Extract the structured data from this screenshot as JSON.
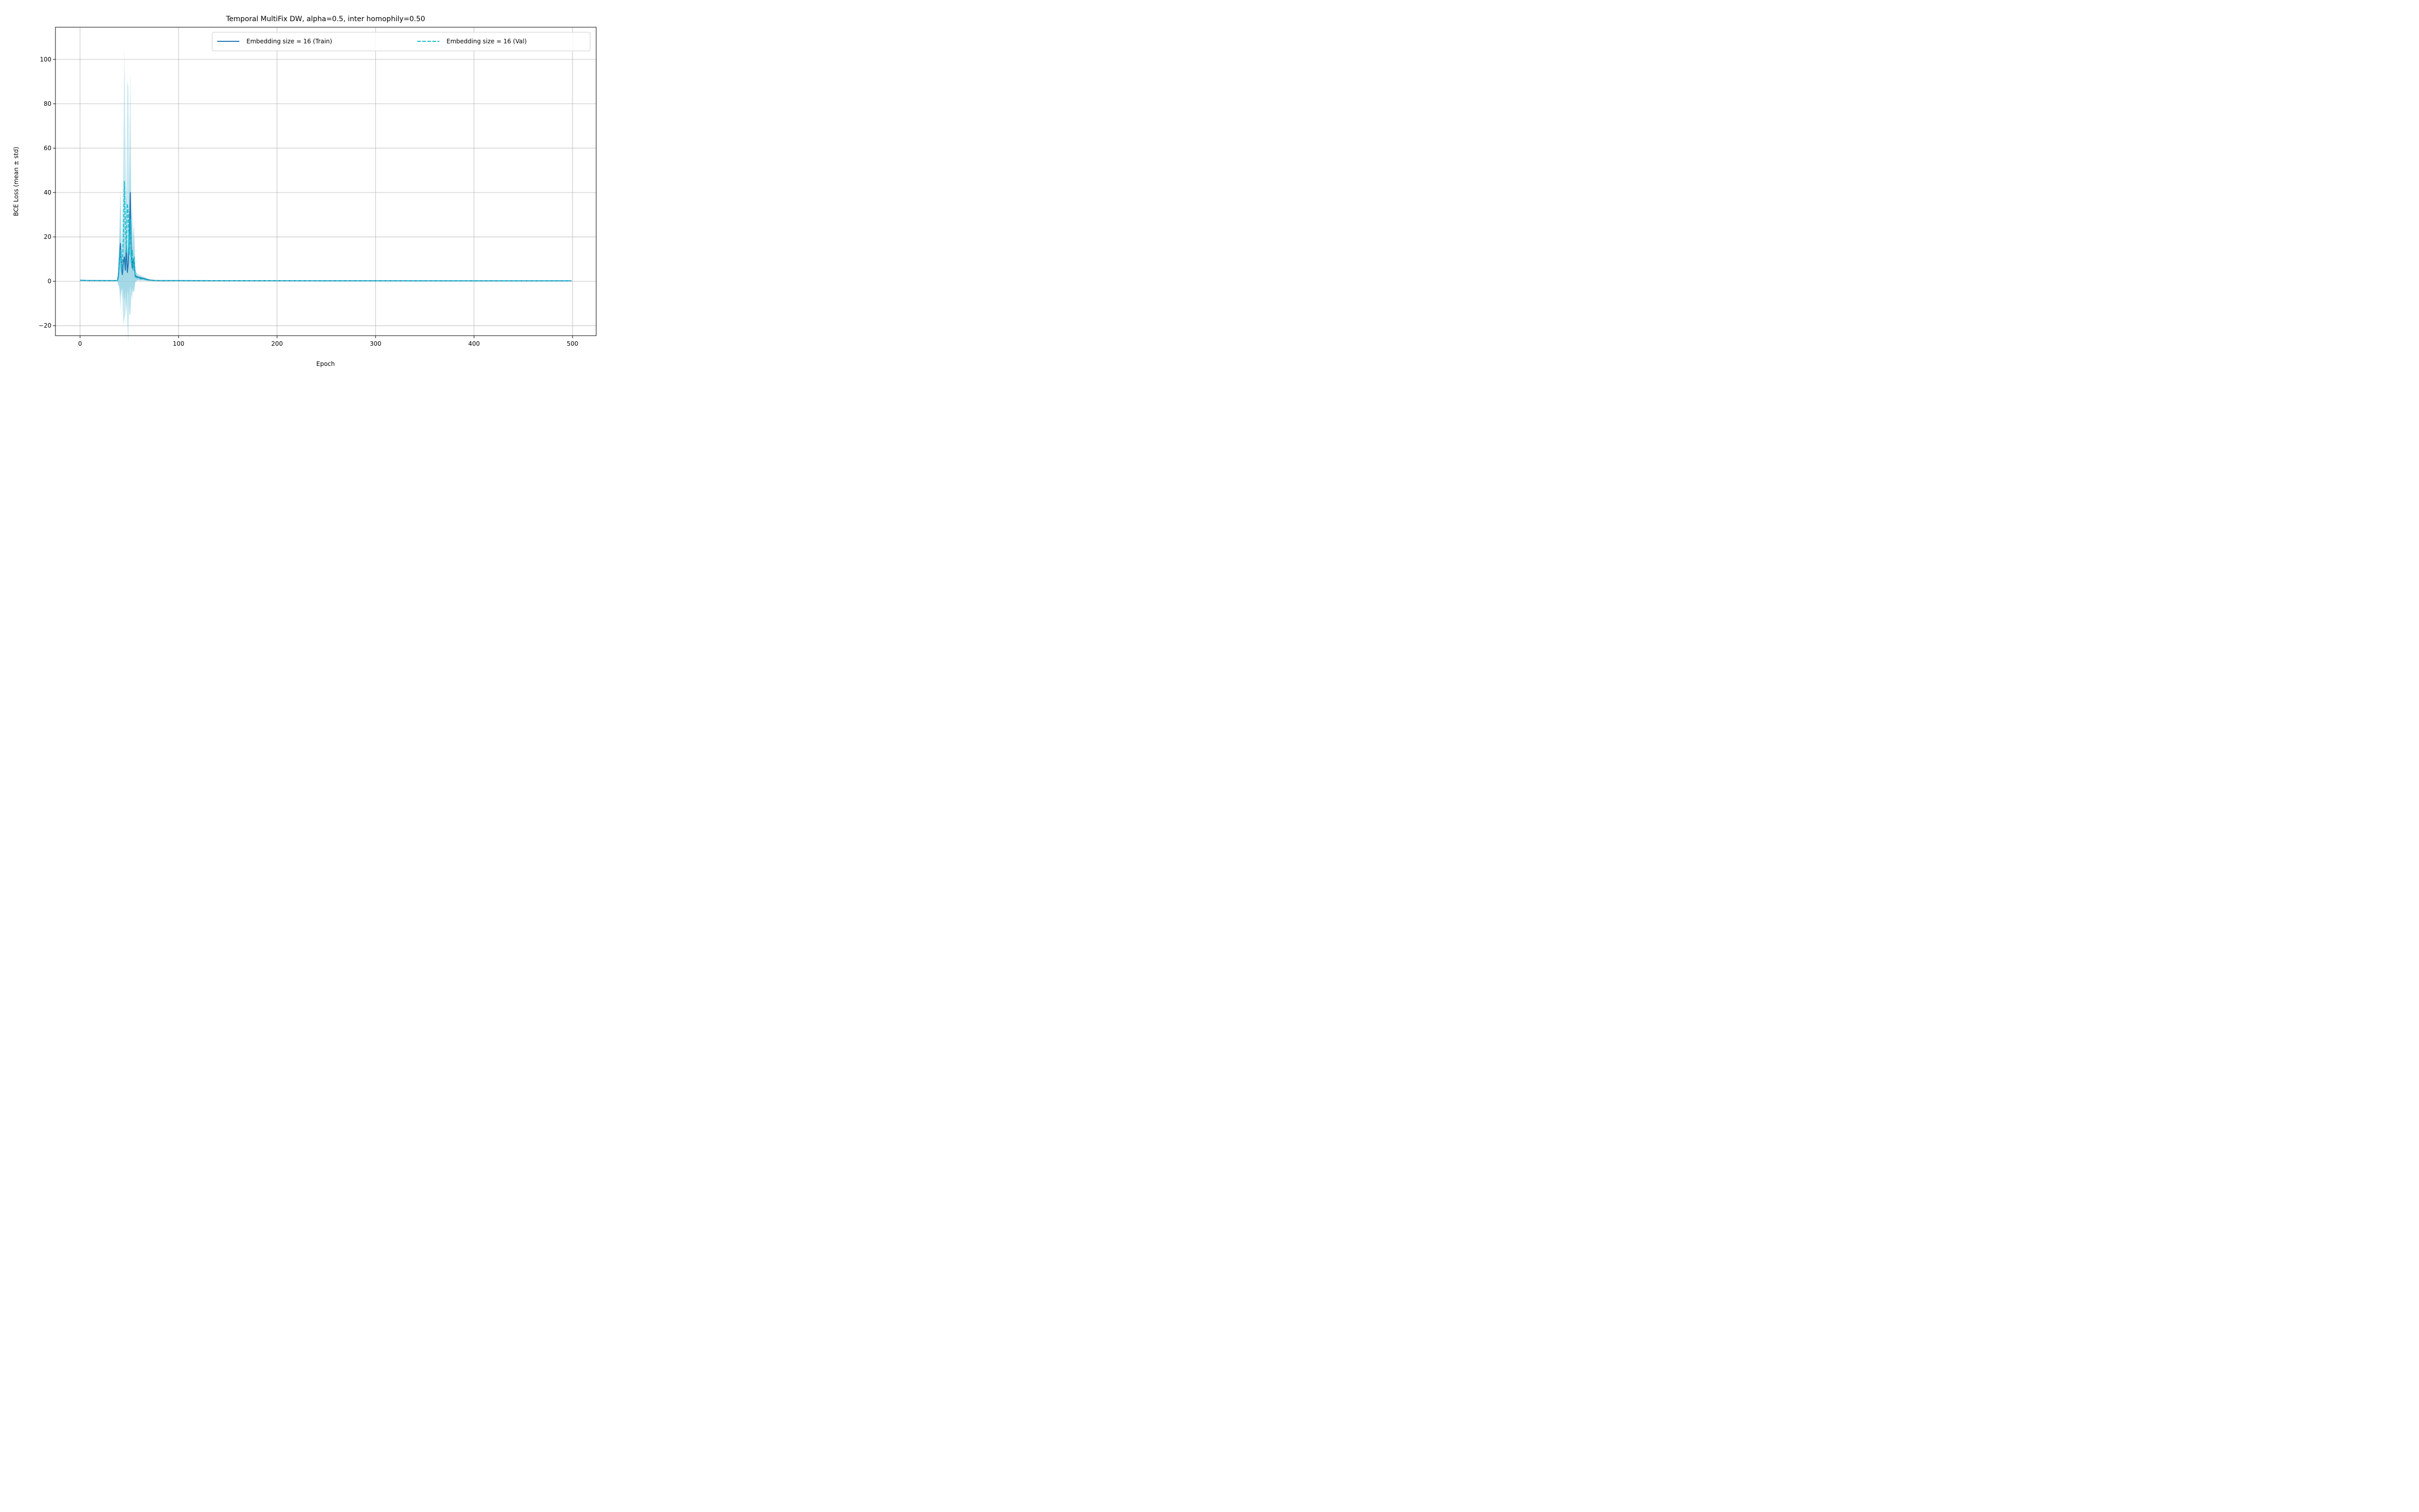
{
  "chart_data": {
    "type": "line",
    "title": "Temporal MultiFix DW, alpha=0.5, inter homophily=0.50",
    "xlabel": "Epoch",
    "ylabel": "BCE Loss (mean ± std)",
    "xlim": [
      -25,
      524
    ],
    "ylim": [
      -24.5,
      114.5
    ],
    "xticks": [
      0,
      100,
      200,
      300,
      400,
      500
    ],
    "yticks": [
      -20,
      0,
      20,
      40,
      60,
      80,
      100
    ],
    "xtick_labels": [
      "0",
      "100",
      "200",
      "300",
      "400",
      "500"
    ],
    "ytick_labels": [
      "−20",
      "0",
      "20",
      "40",
      "60",
      "80",
      "100"
    ],
    "grid": true,
    "legend_position": "top-right",
    "legend_ncol": 2,
    "colors": {
      "train": "#1f77b4",
      "val": "#17becf",
      "band": "#87cde0",
      "grid": "#b0b0b0"
    },
    "series": [
      {
        "name": "Embedding size = 16 (Train)",
        "style": "solid",
        "x": [
          0,
          5,
          10,
          20,
          30,
          38,
          39,
          40,
          41,
          42,
          43,
          44,
          45,
          46,
          47,
          48,
          49,
          50,
          51,
          52,
          53,
          54,
          55,
          56,
          58,
          60,
          65,
          70,
          75,
          80,
          100,
          200,
          300,
          400,
          499
        ],
        "y": [
          0.5,
          0.4,
          0.35,
          0.3,
          0.3,
          0.3,
          3,
          10,
          17,
          6,
          3,
          9,
          11,
          5,
          16,
          4,
          8,
          20,
          40,
          12,
          6,
          10,
          7,
          2.5,
          2,
          1.7,
          1.2,
          0.6,
          0.4,
          0.3,
          0.3,
          0.25,
          0.22,
          0.2,
          0.2
        ],
        "std": [
          0.1,
          0.1,
          0.1,
          0.1,
          0.1,
          0.1,
          5,
          12,
          24,
          10,
          6,
          16,
          20,
          9,
          30,
          8,
          14,
          35,
          55,
          20,
          9,
          15,
          11,
          3,
          1.5,
          1.2,
          0.8,
          0.4,
          0.2,
          0.1,
          0.05,
          0.05,
          0.05,
          0.05,
          0.05
        ]
      },
      {
        "name": "Embedding size = 16 (Val)",
        "style": "dashed",
        "x": [
          0,
          5,
          10,
          20,
          30,
          38,
          39,
          40,
          41,
          42,
          43,
          44,
          45,
          46,
          47,
          48,
          49,
          50,
          51,
          52,
          53,
          54,
          55,
          56,
          58,
          60,
          65,
          70,
          75,
          80,
          100,
          200,
          300,
          400,
          499
        ],
        "y": [
          0.4,
          0.35,
          0.3,
          0.28,
          0.28,
          0.28,
          2,
          8,
          14,
          5,
          9,
          20,
          45,
          25,
          13,
          35,
          30,
          12,
          28,
          8,
          14,
          5,
          11,
          2,
          1.6,
          1.3,
          0.9,
          0.5,
          0.35,
          0.3,
          0.28,
          0.25,
          0.23,
          0.22,
          0.22
        ],
        "std": [
          0.1,
          0.1,
          0.1,
          0.1,
          0.1,
          0.1,
          4,
          12,
          27,
          8,
          18,
          40,
          62,
          40,
          20,
          55,
          58,
          16,
          30,
          12,
          22,
          7,
          16,
          2.5,
          1.2,
          1,
          0.6,
          0.3,
          0.15,
          0.1,
          0.05,
          0.05,
          0.05,
          0.05,
          0.05
        ]
      }
    ]
  }
}
